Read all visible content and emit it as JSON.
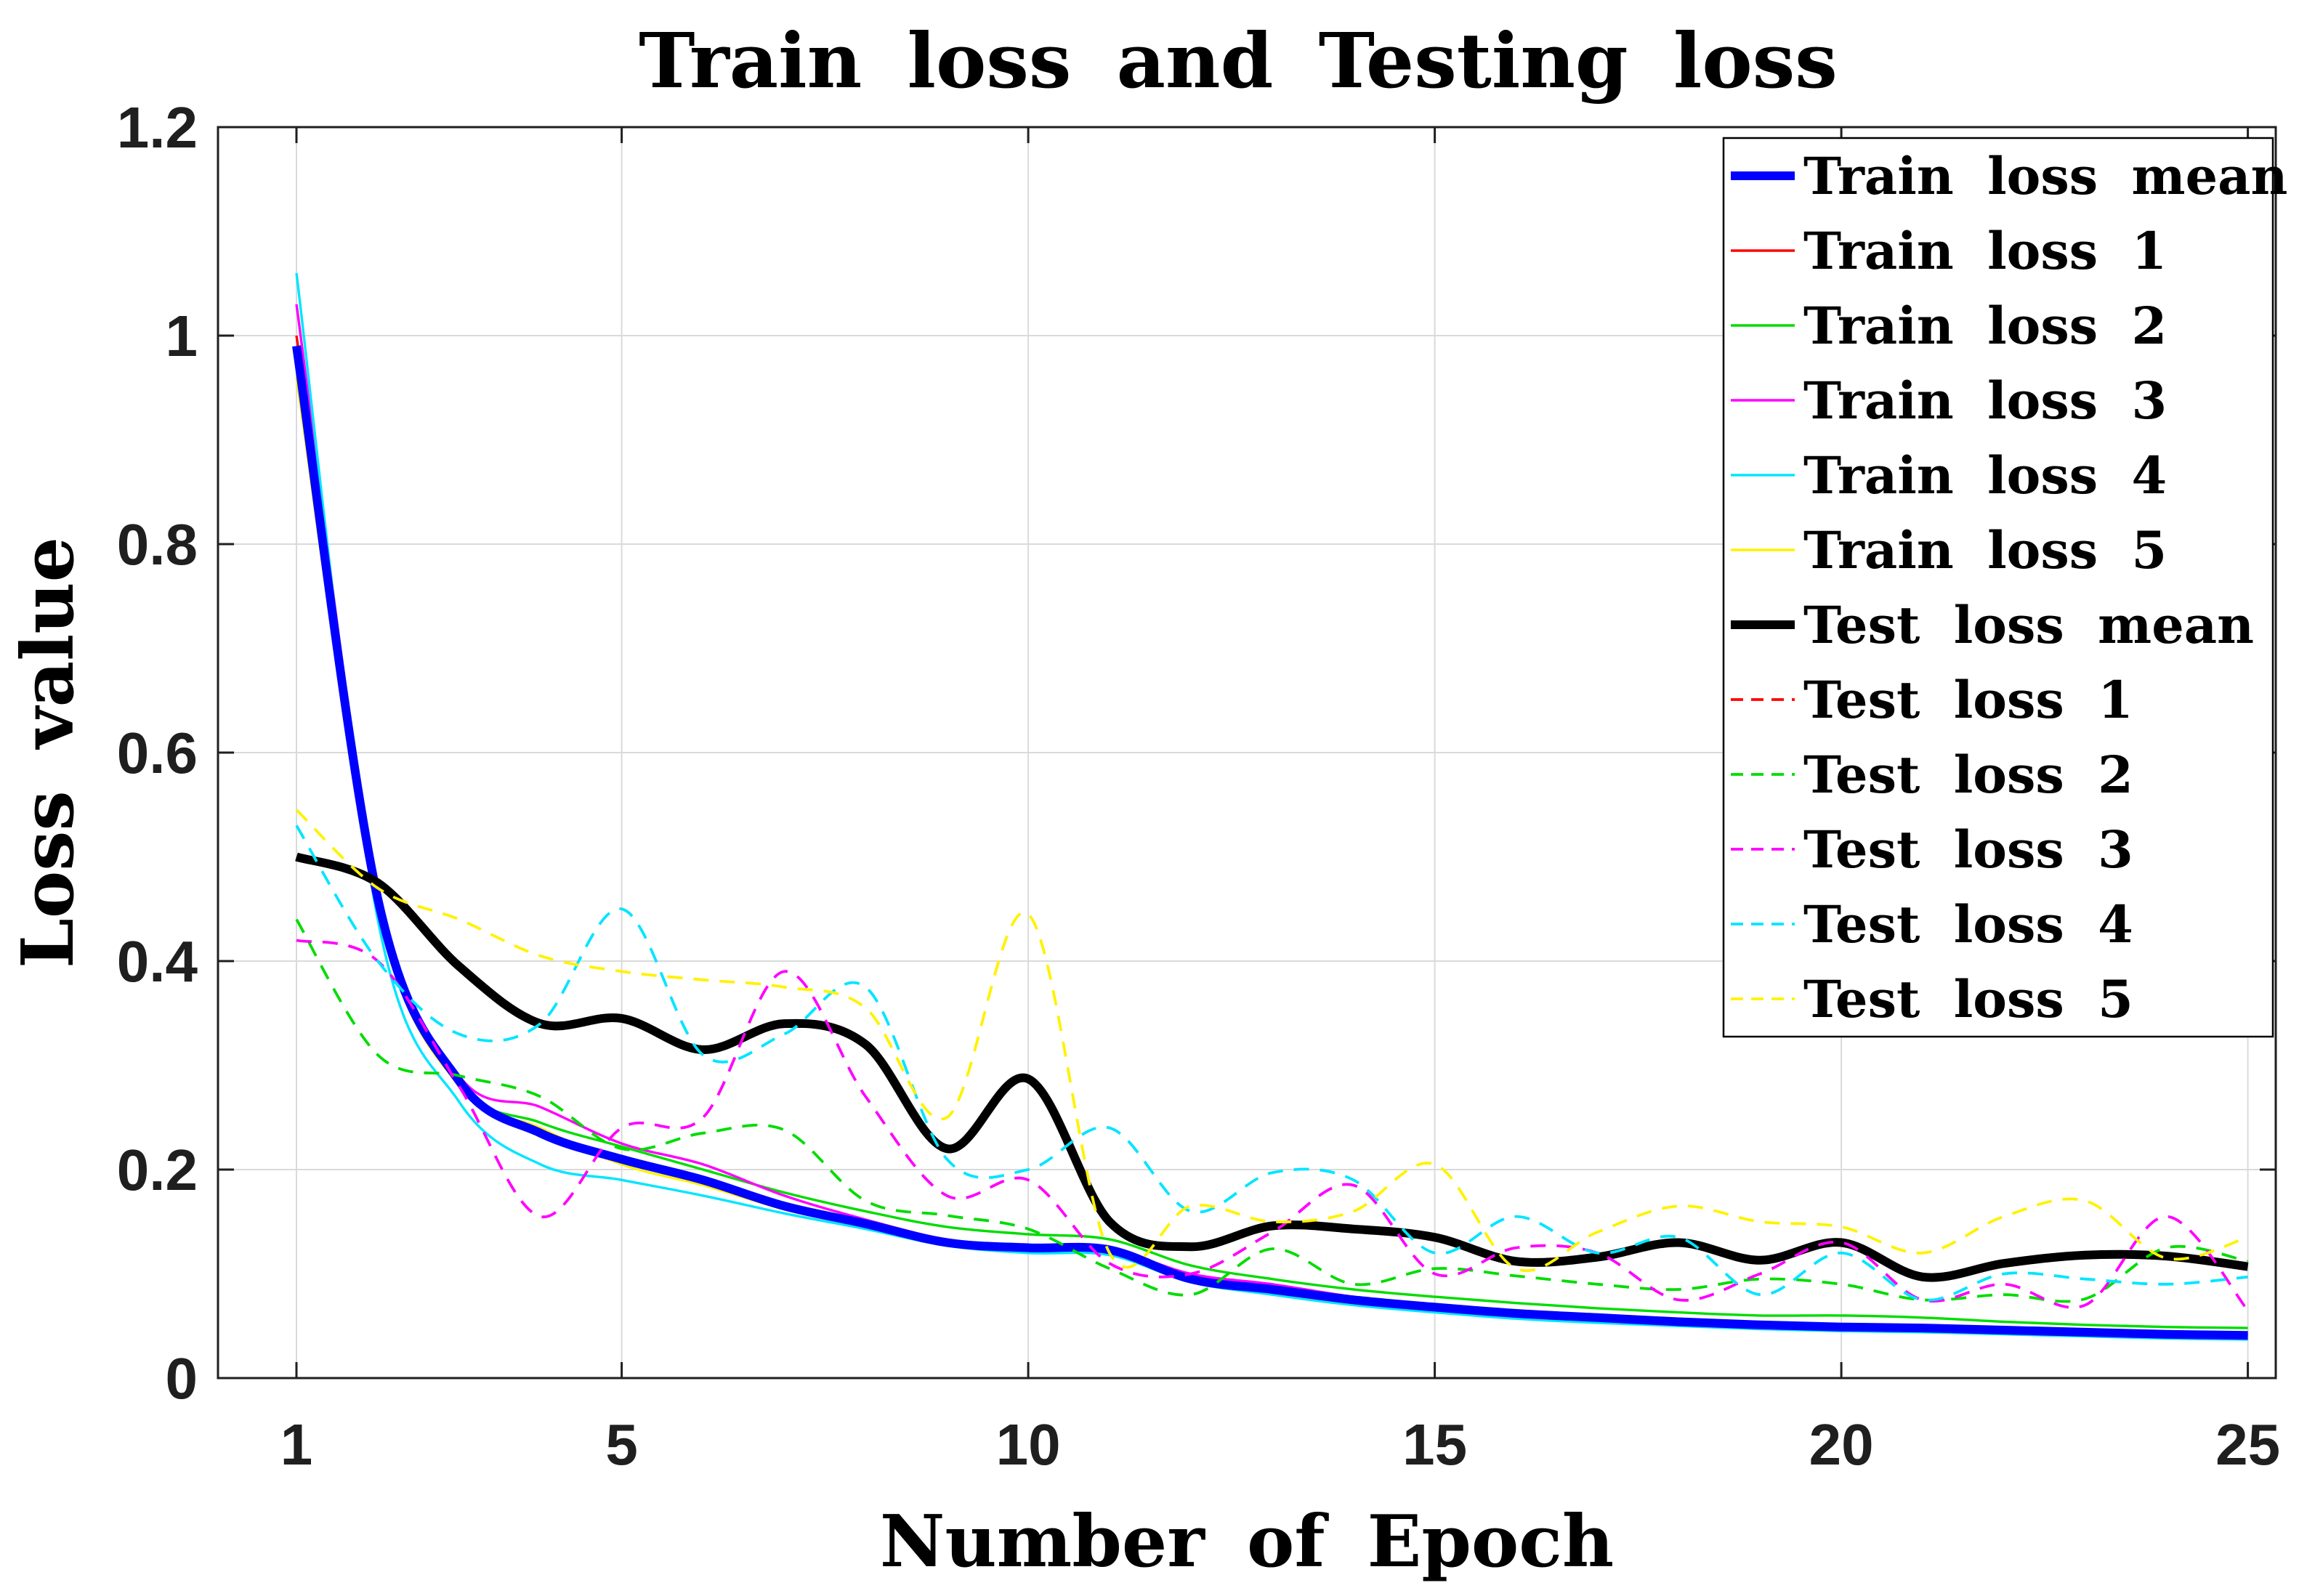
{
  "chart_data": {
    "type": "line",
    "title": "Train loss and Testing loss",
    "xlabel": "Number of Epoch",
    "ylabel": "Loss value",
    "xlim": [
      0.03,
      25.35
    ],
    "ylim": [
      0,
      1.2
    ],
    "grid": true,
    "legend_position": "top-right",
    "x_ticks": [
      1,
      5,
      10,
      15,
      20,
      25
    ],
    "x_tick_labels": [
      "1",
      "5",
      "10",
      "15",
      "20",
      "25"
    ],
    "y_ticks": [
      0,
      0.2,
      0.4,
      0.6,
      0.8,
      1.0,
      1.2
    ],
    "y_tick_labels": [
      "0",
      "0.2",
      "0.4",
      "0.6",
      "0.8",
      "1",
      "1.2"
    ],
    "x": [
      1,
      2,
      3,
      4,
      5,
      6,
      7,
      8,
      9,
      10,
      11,
      12,
      13,
      14,
      15,
      16,
      17,
      18,
      19,
      20,
      21,
      22,
      23,
      24,
      25
    ],
    "draw_order": [
      1,
      2,
      3,
      4,
      5,
      0,
      7,
      6,
      8,
      9,
      10,
      11
    ],
    "series": [
      {
        "name": "Train loss mean",
        "color": "#0000FF",
        "line_style": "solid",
        "line_weight": "thick",
        "values": [
          0.99,
          0.46,
          0.285,
          0.235,
          0.21,
          0.19,
          0.165,
          0.148,
          0.13,
          0.125,
          0.123,
          0.095,
          0.085,
          0.075,
          0.068,
          0.062,
          0.058,
          0.054,
          0.051,
          0.049,
          0.048,
          0.046,
          0.044,
          0.042,
          0.041
        ]
      },
      {
        "name": "Train loss 1",
        "color": "#FF0000",
        "line_style": "solid",
        "line_weight": "thin",
        "values": [
          1.0,
          0.46,
          0.285,
          0.235,
          0.21,
          0.19,
          0.165,
          0.148,
          0.13,
          0.125,
          0.123,
          0.095,
          0.085,
          0.075,
          0.068,
          0.062,
          0.058,
          0.054,
          0.051,
          0.049,
          0.048,
          0.046,
          0.044,
          0.042,
          0.041
        ]
      },
      {
        "name": "Train loss 2",
        "color": "#00DC00",
        "line_style": "solid",
        "line_weight": "thin",
        "values": [
          0.97,
          0.455,
          0.283,
          0.245,
          0.222,
          0.2,
          0.178,
          0.16,
          0.145,
          0.138,
          0.133,
          0.108,
          0.095,
          0.085,
          0.078,
          0.072,
          0.067,
          0.063,
          0.06,
          0.06,
          0.058,
          0.054,
          0.051,
          0.049,
          0.048
        ]
      },
      {
        "name": "Train loss 3",
        "color": "#FF00FF",
        "line_style": "solid",
        "line_weight": "thin",
        "values": [
          1.03,
          0.47,
          0.29,
          0.26,
          0.225,
          0.205,
          0.175,
          0.152,
          0.133,
          0.127,
          0.124,
          0.1,
          0.09,
          0.078,
          0.07,
          0.064,
          0.06,
          0.056,
          0.052,
          0.05,
          0.049,
          0.047,
          0.045,
          0.043,
          0.042
        ]
      },
      {
        "name": "Train loss 4",
        "color": "#00E5FF",
        "line_style": "solid",
        "line_weight": "thin",
        "values": [
          1.06,
          0.44,
          0.265,
          0.205,
          0.19,
          0.175,
          0.158,
          0.143,
          0.127,
          0.12,
          0.118,
          0.092,
          0.08,
          0.07,
          0.063,
          0.057,
          0.053,
          0.05,
          0.047,
          0.045,
          0.044,
          0.042,
          0.04,
          0.038,
          0.037
        ]
      },
      {
        "name": "Train loss 5",
        "color": "#FFF200",
        "line_style": "solid",
        "line_weight": "thin",
        "values": [
          0.96,
          0.45,
          0.28,
          0.24,
          0.205,
          0.185,
          0.162,
          0.146,
          0.128,
          0.123,
          0.12,
          0.093,
          0.082,
          0.072,
          0.066,
          0.06,
          0.056,
          0.052,
          0.049,
          0.047,
          0.046,
          0.044,
          0.042,
          0.04,
          0.039
        ]
      },
      {
        "name": "Test loss mean",
        "color": "#000000",
        "line_style": "solid",
        "line_weight": "thick",
        "values": [
          0.5,
          0.475,
          0.395,
          0.34,
          0.345,
          0.315,
          0.34,
          0.32,
          0.22,
          0.287,
          0.15,
          0.126,
          0.146,
          0.143,
          0.135,
          0.112,
          0.116,
          0.13,
          0.113,
          0.13,
          0.097,
          0.11,
          0.118,
          0.117,
          0.107
        ]
      },
      {
        "name": "Test loss 1",
        "color": "#FF0000",
        "line_style": "dashed",
        "line_weight": "thin",
        "values": [
          0.5,
          0.475,
          0.395,
          0.34,
          0.345,
          0.315,
          0.34,
          0.32,
          0.22,
          0.287,
          0.15,
          0.126,
          0.146,
          0.143,
          0.135,
          0.112,
          0.116,
          0.13,
          0.113,
          0.13,
          0.097,
          0.11,
          0.118,
          0.117,
          0.107
        ]
      },
      {
        "name": "Test loss 2",
        "color": "#00DC00",
        "line_style": "dashed",
        "line_weight": "thin",
        "values": [
          0.44,
          0.31,
          0.29,
          0.27,
          0.22,
          0.235,
          0.238,
          0.17,
          0.156,
          0.143,
          0.105,
          0.08,
          0.124,
          0.09,
          0.105,
          0.098,
          0.09,
          0.085,
          0.095,
          0.09,
          0.075,
          0.08,
          0.076,
          0.125,
          0.112
        ]
      },
      {
        "name": "Test loss 3",
        "color": "#FF00FF",
        "line_style": "dashed",
        "line_weight": "thin",
        "values": [
          0.42,
          0.4,
          0.28,
          0.155,
          0.24,
          0.25,
          0.39,
          0.27,
          0.175,
          0.19,
          0.11,
          0.1,
          0.14,
          0.185,
          0.1,
          0.125,
          0.12,
          0.075,
          0.1,
          0.13,
          0.075,
          0.09,
          0.07,
          0.155,
          0.065
        ]
      },
      {
        "name": "Test loss 4",
        "color": "#00E5FF",
        "line_style": "dashed",
        "line_weight": "thin",
        "values": [
          0.53,
          0.4,
          0.33,
          0.34,
          0.45,
          0.31,
          0.33,
          0.375,
          0.21,
          0.2,
          0.24,
          0.16,
          0.197,
          0.19,
          0.12,
          0.155,
          0.12,
          0.135,
          0.08,
          0.12,
          0.075,
          0.1,
          0.095,
          0.09,
          0.097
        ]
      },
      {
        "name": "Test loss 5",
        "color": "#FFF200",
        "line_style": "dashed",
        "line_weight": "thin",
        "values": [
          0.545,
          0.47,
          0.44,
          0.405,
          0.39,
          0.382,
          0.375,
          0.355,
          0.25,
          0.445,
          0.12,
          0.165,
          0.15,
          0.16,
          0.205,
          0.105,
          0.14,
          0.165,
          0.15,
          0.145,
          0.12,
          0.155,
          0.17,
          0.115,
          0.135
        ]
      }
    ]
  }
}
